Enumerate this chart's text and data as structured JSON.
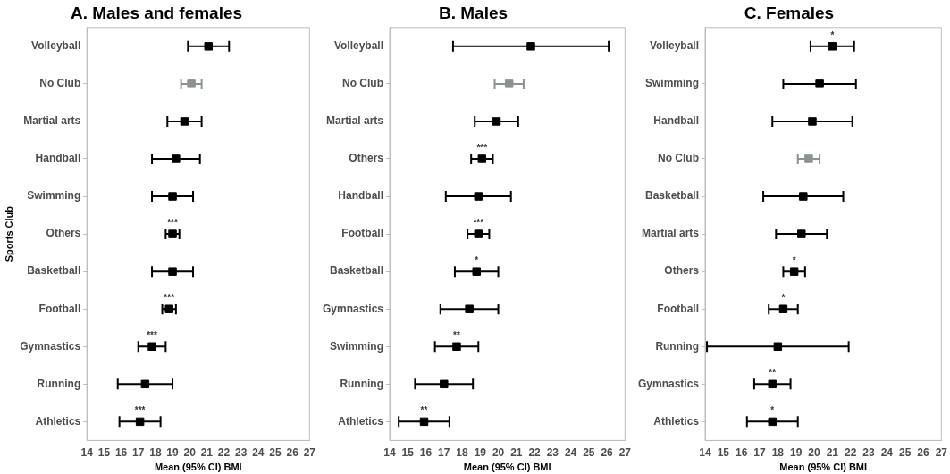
{
  "chart_data": [
    {
      "type": "scatter",
      "orientation": "horizontal",
      "title": "A. Males and females",
      "xlabel": "Mean (95% CI) BMI",
      "ylabel": "Sports Club",
      "marker": "square",
      "grid": false,
      "legend": false,
      "categories": [
        "Volleyball",
        "No Club",
        "Martial arts",
        "Handball",
        "Swimming",
        "Others",
        "Basketball",
        "Football",
        "Gymnastics",
        "Running",
        "Athletics"
      ],
      "values": [
        21.1,
        20.1,
        19.7,
        19.2,
        19.0,
        19.0,
        19.0,
        18.8,
        17.8,
        17.4,
        17.1
      ],
      "errors": [
        [
          19.9,
          22.3
        ],
        [
          19.5,
          20.7
        ],
        [
          18.7,
          20.7
        ],
        [
          17.8,
          20.6
        ],
        [
          17.8,
          20.2
        ],
        [
          18.6,
          19.4
        ],
        [
          17.8,
          20.2
        ],
        [
          18.4,
          19.2
        ],
        [
          17.0,
          18.6
        ],
        [
          15.8,
          19.0
        ],
        [
          15.9,
          18.3
        ]
      ],
      "colors": [
        "#000000",
        "#8c9191",
        "#000000",
        "#000000",
        "#000000",
        "#000000",
        "#000000",
        "#000000",
        "#000000",
        "#000000",
        "#000000"
      ],
      "xlim": [
        14,
        27
      ],
      "xticks": [
        14,
        15,
        16,
        17,
        18,
        19,
        20,
        21,
        22,
        23,
        24,
        25,
        26,
        27
      ],
      "annotations": [
        {
          "text": "***",
          "x": 19.0,
          "y": "Others"
        },
        {
          "text": "***",
          "x": 18.8,
          "y": "Football"
        },
        {
          "text": "***",
          "x": 17.8,
          "y": "Gymnastics"
        },
        {
          "text": "***",
          "x": 17.1,
          "y": "Athletics"
        }
      ]
    },
    {
      "type": "scatter",
      "orientation": "horizontal",
      "title": "B. Males",
      "xlabel": "Mean (95% CI) BMI",
      "marker": "square",
      "grid": false,
      "legend": false,
      "categories": [
        "Volleyball",
        "No Club",
        "Martial arts",
        "Others",
        "Handball",
        "Football",
        "Basketball",
        "Gymnastics",
        "Swimming",
        "Running",
        "Athletics"
      ],
      "values": [
        21.8,
        20.6,
        19.9,
        19.1,
        18.9,
        18.9,
        18.8,
        18.4,
        17.7,
        17.0,
        15.9
      ],
      "errors": [
        [
          17.5,
          26.1
        ],
        [
          19.8,
          21.4
        ],
        [
          18.7,
          21.1
        ],
        [
          18.5,
          19.7
        ],
        [
          17.1,
          20.7
        ],
        [
          18.3,
          19.5
        ],
        [
          17.6,
          20.0
        ],
        [
          16.8,
          20.0
        ],
        [
          16.5,
          18.9
        ],
        [
          15.4,
          18.6
        ],
        [
          14.5,
          17.3
        ]
      ],
      "colors": [
        "#000000",
        "#8c9191",
        "#000000",
        "#000000",
        "#000000",
        "#000000",
        "#000000",
        "#000000",
        "#000000",
        "#000000",
        "#000000"
      ],
      "xlim": [
        14,
        27
      ],
      "xticks": [
        14,
        15,
        16,
        17,
        18,
        19,
        20,
        21,
        22,
        23,
        24,
        25,
        26,
        27
      ],
      "annotations": [
        {
          "text": "***",
          "x": 19.1,
          "y": "Others"
        },
        {
          "text": "***",
          "x": 18.9,
          "y": "Football"
        },
        {
          "text": "*",
          "x": 18.8,
          "y": "Basketball"
        },
        {
          "text": "**",
          "x": 17.7,
          "y": "Swimming"
        },
        {
          "text": "**",
          "x": 15.9,
          "y": "Athletics"
        }
      ]
    },
    {
      "type": "scatter",
      "orientation": "horizontal",
      "title": "C. Females",
      "xlabel": "Mean (95% CI) BMI",
      "marker": "square",
      "grid": false,
      "legend": false,
      "categories": [
        "Volleyball",
        "Swimming",
        "Handball",
        "No Club",
        "Basketball",
        "Martial arts",
        "Others",
        "Football",
        "Running",
        "Gymnastics",
        "Athletics"
      ],
      "values": [
        21.0,
        20.3,
        19.9,
        19.7,
        19.4,
        19.3,
        18.9,
        18.3,
        18.0,
        17.7,
        17.7
      ],
      "errors": [
        [
          19.8,
          22.2
        ],
        [
          18.3,
          22.3
        ],
        [
          17.7,
          22.1
        ],
        [
          19.1,
          20.3
        ],
        [
          17.2,
          21.6
        ],
        [
          17.9,
          20.7
        ],
        [
          18.3,
          19.5
        ],
        [
          17.5,
          19.1
        ],
        [
          14.1,
          21.9
        ],
        [
          16.7,
          18.7
        ],
        [
          16.3,
          19.1
        ]
      ],
      "colors": [
        "#000000",
        "#000000",
        "#000000",
        "#8c9191",
        "#000000",
        "#000000",
        "#000000",
        "#000000",
        "#000000",
        "#000000",
        "#000000"
      ],
      "xlim": [
        14,
        27
      ],
      "xticks": [
        14,
        15,
        16,
        17,
        18,
        19,
        20,
        21,
        22,
        23,
        24,
        25,
        26,
        27
      ],
      "annotations": [
        {
          "text": "*",
          "x": 21.0,
          "y": "Volleyball"
        },
        {
          "text": "*",
          "x": 18.9,
          "y": "Others"
        },
        {
          "text": "*",
          "x": 18.3,
          "y": "Football"
        },
        {
          "text": "**",
          "x": 17.7,
          "y": "Gymnastics"
        },
        {
          "text": "*",
          "x": 17.7,
          "y": "Athletics"
        }
      ]
    }
  ]
}
